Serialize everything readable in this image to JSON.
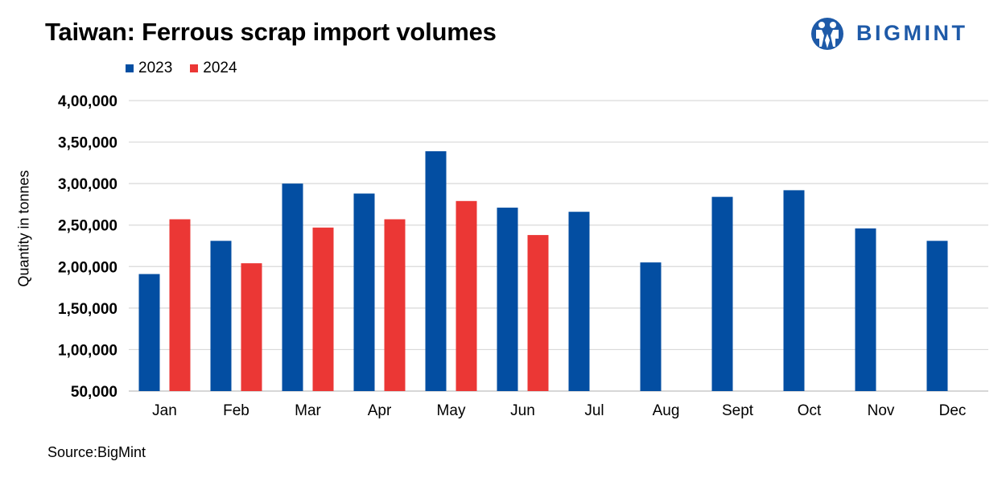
{
  "header": {
    "title": "Taiwan: Ferrous scrap import volumes",
    "logo_text": "BIGMINT"
  },
  "footer": {
    "source": "Source:BigMint"
  },
  "colors": {
    "series_2023": "#034ea2",
    "series_2024": "#eb3735",
    "grid": "#d9d9d9",
    "logo": "#1e5aa8"
  },
  "chart_data": {
    "type": "bar",
    "title": "Taiwan: Ferrous scrap import volumes",
    "xlabel": "",
    "ylabel": "Quantity in tonnes",
    "categories": [
      "Jan",
      "Feb",
      "Mar",
      "Apr",
      "May",
      "Jun",
      "Jul",
      "Aug",
      "Sept",
      "Oct",
      "Nov",
      "Dec"
    ],
    "series": [
      {
        "name": "2023",
        "color": "#034ea2",
        "values": [
          191000,
          231000,
          300000,
          288000,
          339000,
          271000,
          266000,
          205000,
          284000,
          292000,
          246000,
          231000
        ]
      },
      {
        "name": "2024",
        "color": "#eb3735",
        "values": [
          257000,
          204000,
          247000,
          257000,
          279000,
          238000,
          null,
          null,
          null,
          null,
          null,
          null
        ]
      }
    ],
    "ylim": [
      50000,
      400000
    ],
    "yticks": [
      50000,
      100000,
      150000,
      200000,
      250000,
      300000,
      350000,
      400000
    ],
    "ytick_labels": [
      "50,000",
      "1,00,000",
      "1,50,000",
      "2,00,000",
      "2,50,000",
      "3,00,000",
      "3,50,000",
      "4,00,000"
    ],
    "grid": true,
    "legend": "top-left"
  }
}
